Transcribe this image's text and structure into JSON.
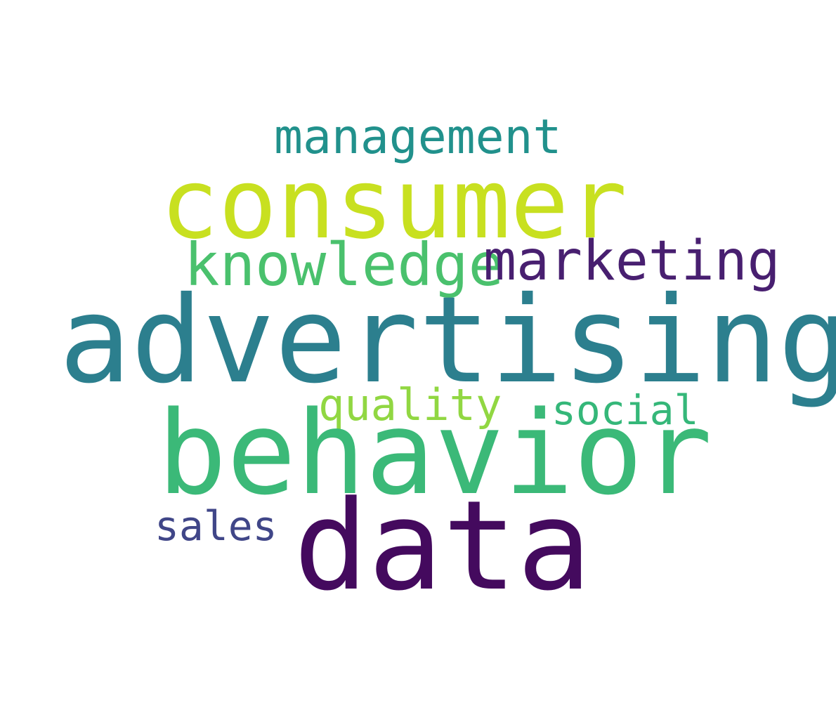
{
  "words": [
    {
      "text": "management",
      "color": "#21918c"
    },
    {
      "text": "consumer",
      "color": "#c8e020"
    },
    {
      "text": "knowledge",
      "color": "#4ac16d"
    },
    {
      "text": "marketing",
      "color": "#481f70"
    },
    {
      "text": "advertising",
      "color": "#2c7f8e"
    },
    {
      "text": "quality",
      "color": "#91d742"
    },
    {
      "text": "social",
      "color": "#35b779"
    },
    {
      "text": "behavior",
      "color": "#3bb978"
    },
    {
      "text": "sales",
      "color": "#404688"
    },
    {
      "text": "data",
      "color": "#440a5e"
    }
  ]
}
